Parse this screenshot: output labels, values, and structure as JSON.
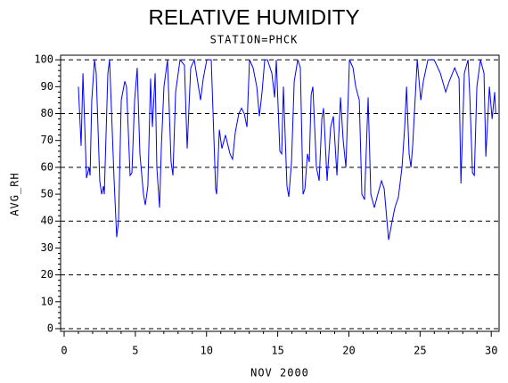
{
  "chart_data": {
    "type": "line",
    "title": "RELATIVE HUMIDITY",
    "subtitle": "STATION=PHCK",
    "x_label": "NOV 2000",
    "y_label": "AVG_RH",
    "xlim": [
      -0.25,
      30.55
    ],
    "ylim": [
      -1,
      101.7
    ],
    "xticks": [
      0,
      5,
      10,
      15,
      20,
      25,
      30
    ],
    "yticks": [
      0,
      10,
      20,
      30,
      40,
      50,
      60,
      70,
      80,
      90,
      100
    ],
    "grid_values": [
      0,
      20,
      40,
      60,
      80,
      100
    ],
    "series": [
      {
        "name": "AVG_RH",
        "color": "#0000ff",
        "x": [
          1.0,
          1.19,
          1.32,
          1.57,
          1.75,
          1.82,
          1.94,
          2.13,
          2.25,
          2.5,
          2.63,
          2.76,
          2.82,
          3.07,
          3.19,
          3.51,
          3.69,
          3.82,
          4.01,
          4.26,
          4.38,
          4.63,
          4.76,
          4.95,
          5.13,
          5.32,
          5.57,
          5.7,
          5.88,
          6.07,
          6.2,
          6.39,
          6.51,
          6.7,
          6.83,
          7.01,
          7.26,
          7.51,
          7.64,
          7.83,
          8.14,
          8.45,
          8.64,
          8.89,
          9.14,
          9.58,
          9.77,
          10.02,
          10.33,
          10.64,
          10.71,
          10.9,
          11.08,
          11.33,
          11.65,
          11.83,
          12.02,
          12.27,
          12.46,
          12.65,
          12.84,
          13.02,
          13.27,
          13.53,
          13.71,
          13.9,
          14.09,
          14.28,
          14.59,
          14.78,
          14.9,
          15.15,
          15.28,
          15.4,
          15.65,
          15.78,
          15.97,
          16.16,
          16.41,
          16.59,
          16.78,
          16.91,
          17.09,
          17.22,
          17.35,
          17.47,
          17.72,
          17.91,
          18.1,
          18.22,
          18.47,
          18.72,
          18.91,
          19.16,
          19.41,
          19.6,
          19.79,
          20.04,
          20.29,
          20.48,
          20.73,
          20.91,
          21.1,
          21.35,
          21.54,
          21.79,
          21.98,
          22.29,
          22.48,
          22.79,
          23.04,
          23.23,
          23.48,
          23.73,
          23.92,
          24.05,
          24.23,
          24.36,
          24.48,
          24.8,
          25.05,
          25.23,
          25.55,
          25.99,
          26.42,
          26.8,
          27.05,
          27.43,
          27.74,
          27.87,
          28.11,
          28.37,
          28.49,
          28.68,
          28.81,
          28.99,
          29.24,
          29.49,
          29.62,
          29.87,
          30.06,
          30.24,
          30.31
        ],
        "values": [
          90,
          68,
          95,
          56,
          60,
          57,
          85,
          100,
          95,
          55,
          50,
          53,
          50,
          95,
          100,
          55,
          34,
          40,
          85,
          92,
          90,
          57,
          58,
          85,
          97,
          65,
          50,
          46,
          53,
          93,
          75,
          95,
          60,
          45,
          68,
          90,
          100,
          62,
          57,
          88,
          100,
          98,
          67,
          97,
          100,
          85,
          93,
          100,
          100,
          52,
          50,
          74,
          67,
          72,
          65,
          63,
          73,
          80,
          82,
          80,
          75,
          100,
          97,
          90,
          79,
          88,
          100,
          100,
          95,
          86,
          100,
          66,
          65,
          90,
          53,
          49,
          62,
          92,
          100,
          97,
          50,
          52,
          65,
          62,
          87,
          90,
          60,
          55,
          78,
          82,
          55,
          75,
          79,
          57,
          86,
          70,
          60,
          100,
          97,
          90,
          85,
          50,
          48,
          86,
          50,
          45,
          49,
          55,
          52,
          33,
          40,
          45,
          49,
          60,
          75,
          90,
          65,
          60,
          68,
          100,
          85,
          92,
          100,
          100,
          95,
          88,
          92,
          97,
          93,
          54,
          95,
          100,
          87,
          58,
          57,
          90,
          100,
          95,
          64,
          90,
          78,
          88,
          80
        ]
      }
    ]
  }
}
